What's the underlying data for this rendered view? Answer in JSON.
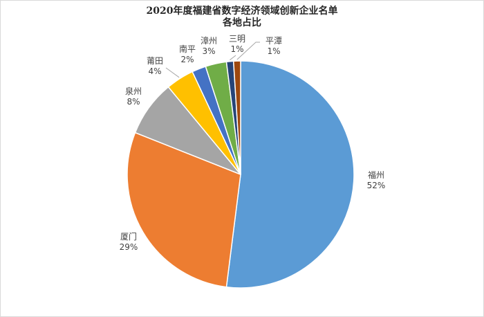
{
  "chart_data": {
    "type": "pie",
    "title": "2020年度福建省数字经济领域创新企业名单",
    "subtitle": "各地占比",
    "categories": [
      "福州",
      "厦门",
      "泉州",
      "莆田",
      "南平",
      "漳州",
      "三明",
      "平潭"
    ],
    "values": [
      52,
      29,
      8,
      4,
      2,
      3,
      1,
      1
    ],
    "value_labels": [
      "52%",
      "29%",
      "8%",
      "4%",
      "2%",
      "3%",
      "1%",
      "1%"
    ],
    "colors": [
      "#5b9bd5",
      "#ed7d31",
      "#a5a5a5",
      "#ffc000",
      "#4472c4",
      "#70ad47",
      "#264478",
      "#9e480e"
    ],
    "legend": "none",
    "data_labels": "outside"
  }
}
